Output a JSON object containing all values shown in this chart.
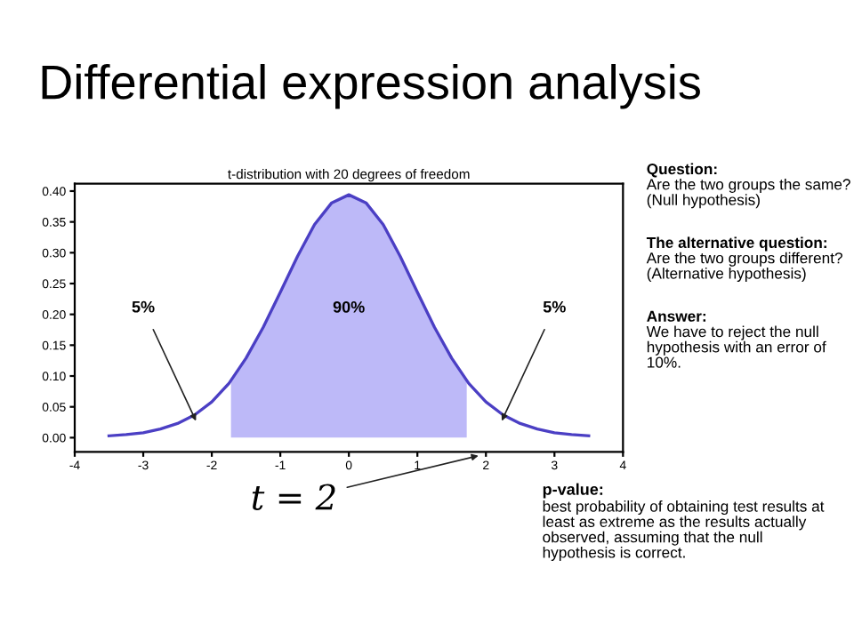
{
  "chart_data": {
    "type": "line",
    "title": "Differential expression analysis",
    "subtitle": "t-distribution with 20 degrees of freedom",
    "series": [
      {
        "color": "#4b3fc4",
        "x": [
          -3.5,
          -3.25,
          -3,
          -2.75,
          -2.5,
          -2.25,
          -2,
          -1.75,
          -1.5,
          -1.25,
          -1,
          -0.75,
          -0.5,
          -0.25,
          0,
          0.25,
          0.5,
          0.75,
          1,
          1.25,
          1.5,
          1.75,
          2,
          2.25,
          2.5,
          2.75,
          3,
          3.25,
          3.5
        ],
        "values": [
          0.003,
          0.005,
          0.008,
          0.014,
          0.023,
          0.037,
          0.058,
          0.088,
          0.129,
          0.179,
          0.236,
          0.294,
          0.346,
          0.381,
          0.394,
          0.381,
          0.346,
          0.294,
          0.236,
          0.179,
          0.129,
          0.088,
          0.058,
          0.037,
          0.023,
          0.014,
          0.008,
          0.005,
          0.003
        ]
      },
      {
        "type": "area",
        "color": "#bdb9f8",
        "x": [
          -1.72,
          -1.5,
          -1.25,
          -1,
          -0.75,
          -0.5,
          -0.25,
          0,
          0.25,
          0.5,
          0.75,
          1,
          1.25,
          1.5,
          1.72
        ],
        "values": [
          0.091,
          0.129,
          0.179,
          0.236,
          0.294,
          0.346,
          0.381,
          0.394,
          0.381,
          0.346,
          0.294,
          0.236,
          0.179,
          0.129,
          0.091
        ]
      }
    ],
    "xlim": [
      -4,
      4
    ],
    "xticks": [
      -4,
      -3,
      -2,
      -1,
      0,
      1,
      2,
      3,
      4
    ],
    "ylim": [
      -0.023,
      0.412
    ],
    "yticks": [
      {
        "value": 0,
        "label": "0.00"
      },
      {
        "value": 0.05,
        "label": "0.05"
      },
      {
        "value": 0.1,
        "label": "0.10"
      },
      {
        "value": 0.15,
        "label": "0.15"
      },
      {
        "value": 0.2,
        "label": "0.20"
      },
      {
        "value": 0.25,
        "label": "0.25"
      },
      {
        "value": 0.3,
        "label": "0.30"
      },
      {
        "value": 0.35,
        "label": "0.35"
      },
      {
        "value": 0.4,
        "label": "0.40"
      }
    ],
    "grid": false,
    "legend": false,
    "annotations": [
      {
        "text": "5%",
        "x": -2.2,
        "y": 0.02
      },
      {
        "text": "5%",
        "x": 2.2,
        "y": 0.02
      },
      "90%",
      "t = 2",
      "Question:\nAre the two groups the same?\n(Null hypothesis)",
      "The alternative question:\nAre the two groups different?\n(Alternative hypothesis)",
      "Answer:\nWe have to reject the null\nhypothesis with an error of\n10%.",
      "p-value:\nbest probability of obtaining test results at\nleast as extreme as the results actually\nobserved, assuming that the null\nhypothesis is correct."
    ]
  }
}
